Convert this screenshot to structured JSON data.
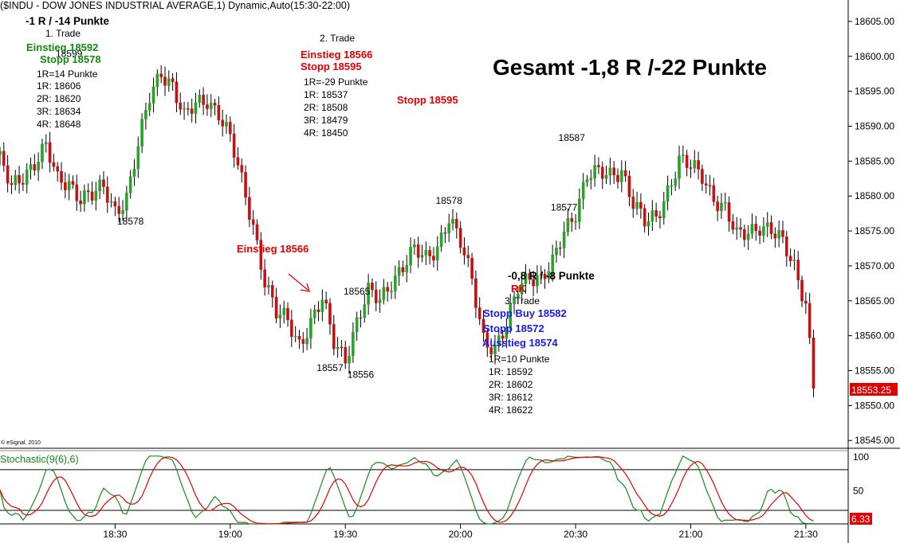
{
  "header": {
    "title": "($INDU - DOW JONES INDUSTRIAL AVERAGE,1) Dynamic,Auto(15:30-22:00)"
  },
  "colors": {
    "up": "#27a327",
    "down": "#c81010",
    "green_text": "#118811",
    "red_text": "#e00000",
    "blue_text": "#1a1ae6",
    "stoch_k": "#1a8a1a",
    "stoch_d": "#e00000",
    "price_badge": "#e00000"
  },
  "copyright": "© eSignal, 2010",
  "summary": "Gesamt -1,8 R /-22 Punkte",
  "trade1": {
    "result": "-1 R / -14 Punkte",
    "title": "1. Trade",
    "entry": "Einstieg 18592",
    "stop": "Stopp 18578",
    "lines": [
      "1R=14 Punkte",
      "1R: 18606",
      "2R: 18620",
      "3R: 18634",
      "4R: 18648"
    ]
  },
  "trade2": {
    "title": "2. Trade",
    "entry": "Einstieg 18566",
    "stop": "Stopp 18595",
    "lines": [
      "1R=-29 Punkte",
      "1R: 18537",
      "2R: 18508",
      "3R: 18479",
      "4R: 18450"
    ],
    "stop_right": "Stopp 18595",
    "entry_marker": "Einstieg 18566"
  },
  "trade3": {
    "result": "-0,8 R / -8 Punkte",
    "rk": "RK",
    "title": "3. Trade",
    "stop_buy": "Stopp Buy 18582",
    "stop": "Stopp 18572",
    "exit": "Ausstieg 18574",
    "lines": [
      "1R=10 Punkte",
      "1R: 18592",
      "2R: 18602",
      "3R: 18612",
      "4R: 18622"
    ]
  },
  "stochastic_label": "Stochastic(9(6),6)",
  "stochastic_value": "6.33",
  "chart_data": {
    "type": "candlestick",
    "y_ticks": [
      "18605.00",
      "18600.00",
      "18595.00",
      "18590.00",
      "18585.00",
      "18580.00",
      "18575.00",
      "18570.00",
      "18565.00",
      "18560.00",
      "18555.00",
      "18550.00",
      "18545.00"
    ],
    "y_range": [
      18544,
      18607.5
    ],
    "x_ticks": [
      "18:30",
      "19:00",
      "19:30",
      "20:00",
      "20:30",
      "21:00",
      "21:30"
    ],
    "x_tick_minutes": [
      1110,
      1140,
      1170,
      1200,
      1230,
      1260,
      1290
    ],
    "last_price": "18553.25",
    "point_labels": [
      {
        "text": "18599",
        "t": 1098,
        "price": 18599
      },
      {
        "text": "18578",
        "t": 1114,
        "price": 18578
      },
      {
        "text": "18565",
        "t": 1173,
        "price": 18565
      },
      {
        "text": "18557",
        "t": 1166,
        "price": 18557
      },
      {
        "text": "18556",
        "t": 1174,
        "price": 18556
      },
      {
        "text": "18578",
        "t": 1197,
        "price": 18578
      },
      {
        "text": "18577",
        "t": 1227,
        "price": 18577
      },
      {
        "text": "18587",
        "t": 1229,
        "price": 18587
      }
    ],
    "stoch_ticks": [
      "100",
      "50"
    ],
    "stoch_levels": [
      80,
      20
    ],
    "anchors": [
      [
        1080,
        18585
      ],
      [
        1083,
        18581
      ],
      [
        1086,
        18583
      ],
      [
        1089,
        18585
      ],
      [
        1092,
        18587
      ],
      [
        1095,
        18582
      ],
      [
        1098,
        18582
      ],
      [
        1101,
        18580
      ],
      [
        1104,
        18580
      ],
      [
        1107,
        18581
      ],
      [
        1110,
        18578
      ],
      [
        1113,
        18580
      ],
      [
        1116,
        18587
      ],
      [
        1119,
        18594
      ],
      [
        1122,
        18598
      ],
      [
        1125,
        18596
      ],
      [
        1128,
        18591
      ],
      [
        1131,
        18593
      ],
      [
        1134,
        18594
      ],
      [
        1137,
        18592
      ],
      [
        1140,
        18588
      ],
      [
        1143,
        18582
      ],
      [
        1146,
        18576
      ],
      [
        1149,
        18568
      ],
      [
        1152,
        18563
      ],
      [
        1155,
        18562
      ],
      [
        1158,
        18559
      ],
      [
        1161,
        18562
      ],
      [
        1164,
        18565
      ],
      [
        1167,
        18559
      ],
      [
        1170,
        18557
      ],
      [
        1173,
        18562
      ],
      [
        1176,
        18566
      ],
      [
        1179,
        18565
      ],
      [
        1182,
        18568
      ],
      [
        1185,
        18570
      ],
      [
        1188,
        18572
      ],
      [
        1191,
        18571
      ],
      [
        1194,
        18573
      ],
      [
        1197,
        18577
      ],
      [
        1200,
        18573
      ],
      [
        1203,
        18568
      ],
      [
        1206,
        18560
      ],
      [
        1209,
        18558
      ],
      [
        1212,
        18561
      ],
      [
        1215,
        18567
      ],
      [
        1218,
        18569
      ],
      [
        1221,
        18568
      ],
      [
        1224,
        18570
      ],
      [
        1227,
        18575
      ],
      [
        1230,
        18578
      ],
      [
        1233,
        18583
      ],
      [
        1236,
        18583
      ],
      [
        1239,
        18583
      ],
      [
        1242,
        18584
      ],
      [
        1245,
        18579
      ],
      [
        1248,
        18576
      ],
      [
        1251,
        18577
      ],
      [
        1254,
        18581
      ],
      [
        1257,
        18585
      ],
      [
        1260,
        18584
      ],
      [
        1263,
        18583
      ],
      [
        1266,
        18580
      ],
      [
        1269,
        18578
      ],
      [
        1272,
        18574
      ],
      [
        1275,
        18575
      ],
      [
        1278,
        18576
      ],
      [
        1281,
        18575
      ],
      [
        1284,
        18573
      ],
      [
        1287,
        18570
      ],
      [
        1290,
        18565
      ],
      [
        1292,
        18553
      ]
    ]
  }
}
